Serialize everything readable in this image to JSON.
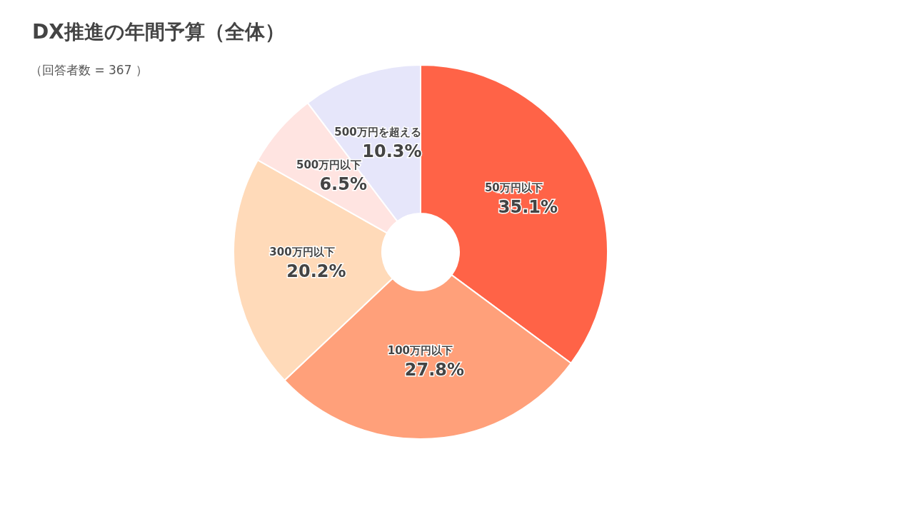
{
  "chart_data": {
    "type": "donut",
    "title": "DX推進の年間予算（全体）",
    "subtitle": "（回答者数 = 367 ）",
    "categories": [
      "50万円以下",
      "100万円以下",
      "300万円以下",
      "500万円以下",
      "500万円を超える"
    ],
    "values": [
      35.1,
      27.8,
      20.2,
      6.5,
      10.3
    ],
    "value_labels": [
      "35.1%",
      "27.8%",
      "20.2%",
      "6.5%",
      "10.3%"
    ],
    "colors": [
      "#ff6347",
      "#ffa07a",
      "#ffdab9",
      "#ffe4e1",
      "#e6e6fa"
    ]
  }
}
